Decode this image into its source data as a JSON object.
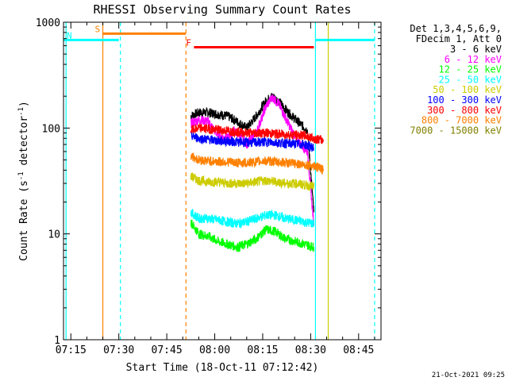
{
  "chart_data": {
    "type": "line",
    "title": "RHESSI Observing Summary Count Rates",
    "xlabel": "Start Time (18-Oct-11 07:12:42)",
    "ylabel": "Count Rate (s",
    "ylabel_sup1": "-1",
    "ylabel_mid": " detector",
    "ylabel_sup2": "-1",
    "ylabel_end": ")",
    "yscale": "log",
    "xlim": [
      "07:12:42",
      "08:52:00"
    ],
    "ylim": [
      1,
      1000
    ],
    "x_ticks": [
      "07:15",
      "07:30",
      "07:45",
      "08:00",
      "08:15",
      "08:30",
      "08:45"
    ],
    "y_ticks": [
      "1",
      "10",
      "100",
      "1000"
    ],
    "legend_header": [
      "Det 1,3,4,5,6,9,",
      "FDecim 1, Att 0"
    ],
    "legend_position": "right",
    "series": [
      {
        "name": "3 - 6 keV",
        "color": "#000000",
        "x": [
          "07:52:30",
          "07:55",
          "07:58",
          "08:01",
          "08:04",
          "08:07",
          "08:10",
          "08:13",
          "08:16",
          "08:18",
          "08:20",
          "08:23",
          "08:26",
          "08:29",
          "08:31"
        ],
        "y": [
          130,
          140,
          140,
          135,
          130,
          115,
          100,
          130,
          180,
          200,
          180,
          140,
          115,
          95,
          16
        ]
      },
      {
        "name": "6 - 12 keV",
        "color": "#ff00ff",
        "x": [
          "07:52:30",
          "07:55",
          "07:58",
          "08:01",
          "08:04",
          "08:06",
          "08:08",
          "08:10",
          "08:13",
          "08:16",
          "08:18",
          "08:20",
          "08:23",
          "08:26",
          "08:29",
          "08:31"
        ],
        "y": [
          110,
          120,
          115,
          85,
          80,
          95,
          85,
          70,
          90,
          160,
          195,
          170,
          110,
          75,
          60,
          12
        ]
      },
      {
        "name": "12 - 25 keV",
        "color": "#00ff00",
        "x": [
          "07:52:30",
          "07:55",
          "07:58",
          "08:01",
          "08:04",
          "08:07",
          "08:10",
          "08:13",
          "08:16",
          "08:19",
          "08:22",
          "08:25",
          "08:28",
          "08:31"
        ],
        "y": [
          13,
          10,
          9.5,
          8.5,
          8,
          7.5,
          8,
          9,
          11,
          10.5,
          9,
          8.5,
          8,
          7.5
        ]
      },
      {
        "name": "25 - 50 keV",
        "color": "#00ffff",
        "x": [
          "07:52:30",
          "07:55",
          "07:58",
          "08:01",
          "08:04",
          "08:07",
          "08:10",
          "08:13",
          "08:16",
          "08:19",
          "08:22",
          "08:25",
          "08:28",
          "08:31"
        ],
        "y": [
          16,
          14,
          14,
          13.5,
          13,
          12.5,
          13,
          14,
          15,
          15,
          14,
          13.5,
          13,
          12.5
        ]
      },
      {
        "name": "50 - 100 keV",
        "color": "#cccc00",
        "x": [
          "07:52:30",
          "07:55",
          "07:58",
          "08:01",
          "08:04",
          "08:07",
          "08:10",
          "08:13",
          "08:16",
          "08:19",
          "08:22",
          "08:25",
          "08:28",
          "08:31"
        ],
        "y": [
          35,
          32,
          31,
          31,
          30,
          30,
          30,
          31,
          32,
          31,
          30,
          30,
          29,
          28
        ]
      },
      {
        "name": "100 - 300 keV",
        "color": "#0000ff",
        "x": [
          "07:52:30",
          "07:55",
          "07:58",
          "08:01",
          "08:04",
          "08:07",
          "08:10",
          "08:13",
          "08:16",
          "08:19",
          "08:22",
          "08:25",
          "08:28",
          "08:31"
        ],
        "y": [
          85,
          80,
          78,
          76,
          75,
          74,
          73,
          73,
          74,
          73,
          72,
          71,
          70,
          65
        ]
      },
      {
        "name": "300 - 800 keV",
        "color": "#ff0000",
        "x": [
          "07:52:30",
          "07:55",
          "07:58",
          "08:01",
          "08:04",
          "08:07",
          "08:10",
          "08:13",
          "08:16",
          "08:19",
          "08:22",
          "08:25",
          "08:28",
          "08:31",
          "08:34"
        ],
        "y": [
          95,
          100,
          98,
          96,
          94,
          92,
          90,
          90,
          90,
          88,
          87,
          86,
          85,
          80,
          76
        ]
      },
      {
        "name": "800 - 7000 keV",
        "color": "#ff8000",
        "x": [
          "07:52:30",
          "07:55",
          "07:58",
          "08:01",
          "08:04",
          "08:07",
          "08:10",
          "08:13",
          "08:16",
          "08:19",
          "08:22",
          "08:25",
          "08:28",
          "08:31",
          "08:34"
        ],
        "y": [
          55,
          50,
          49,
          48,
          48,
          47,
          47,
          48,
          49,
          48,
          47,
          46,
          45,
          44,
          40
        ]
      },
      {
        "name": "7000 - 15000 keV",
        "color": "#808000",
        "x": [],
        "y": []
      }
    ],
    "bars": [
      {
        "label": "S",
        "color": "#ff8000",
        "x": [
          "07:25:00",
          "07:51:00"
        ],
        "y": 780
      },
      {
        "label": "N",
        "color": "#00ffff",
        "x": [
          "07:12:42",
          "07:30:00"
        ],
        "y": 680
      },
      {
        "label": "",
        "color": "#00ffff",
        "x": [
          "08:31:30",
          "08:50:00"
        ],
        "y": 680
      },
      {
        "label": "F",
        "color": "#ff0000",
        "x": [
          "07:53:30",
          "08:31:00"
        ],
        "y": 580
      }
    ],
    "vlines": [
      {
        "x": "07:13:30",
        "color": "#00ffff",
        "style": "solid"
      },
      {
        "x": "07:25:00",
        "color": "#ff8000",
        "style": "solid"
      },
      {
        "x": "07:30:30",
        "color": "#00ffff",
        "style": "dashed"
      },
      {
        "x": "07:51:00",
        "color": "#ff8000",
        "style": "dashed"
      },
      {
        "x": "08:31:30",
        "color": "#00ffff",
        "style": "solid"
      },
      {
        "x": "08:35:30",
        "color": "#cccc00",
        "style": "solid"
      },
      {
        "x": "08:50:00",
        "color": "#00ffff",
        "style": "dashed"
      }
    ]
  },
  "footer": {
    "timestamp": "21-Oct-2021 09:25"
  }
}
